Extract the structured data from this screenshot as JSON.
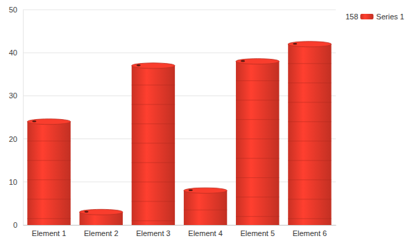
{
  "chart_data": {
    "type": "bar",
    "categories": [
      "Element 1",
      "Element 2",
      "Element 3",
      "Element 4",
      "Element 5",
      "Element 6"
    ],
    "series": [
      {
        "name": "Series 1",
        "color": "#e8392a",
        "values": [
          24,
          3,
          37,
          8,
          38,
          42
        ]
      }
    ],
    "ylim": [
      0,
      50
    ],
    "yticks": [
      0,
      10,
      20,
      30,
      40,
      50
    ],
    "grid": true,
    "legend": "top-right",
    "annotations": [
      "158"
    ]
  }
}
